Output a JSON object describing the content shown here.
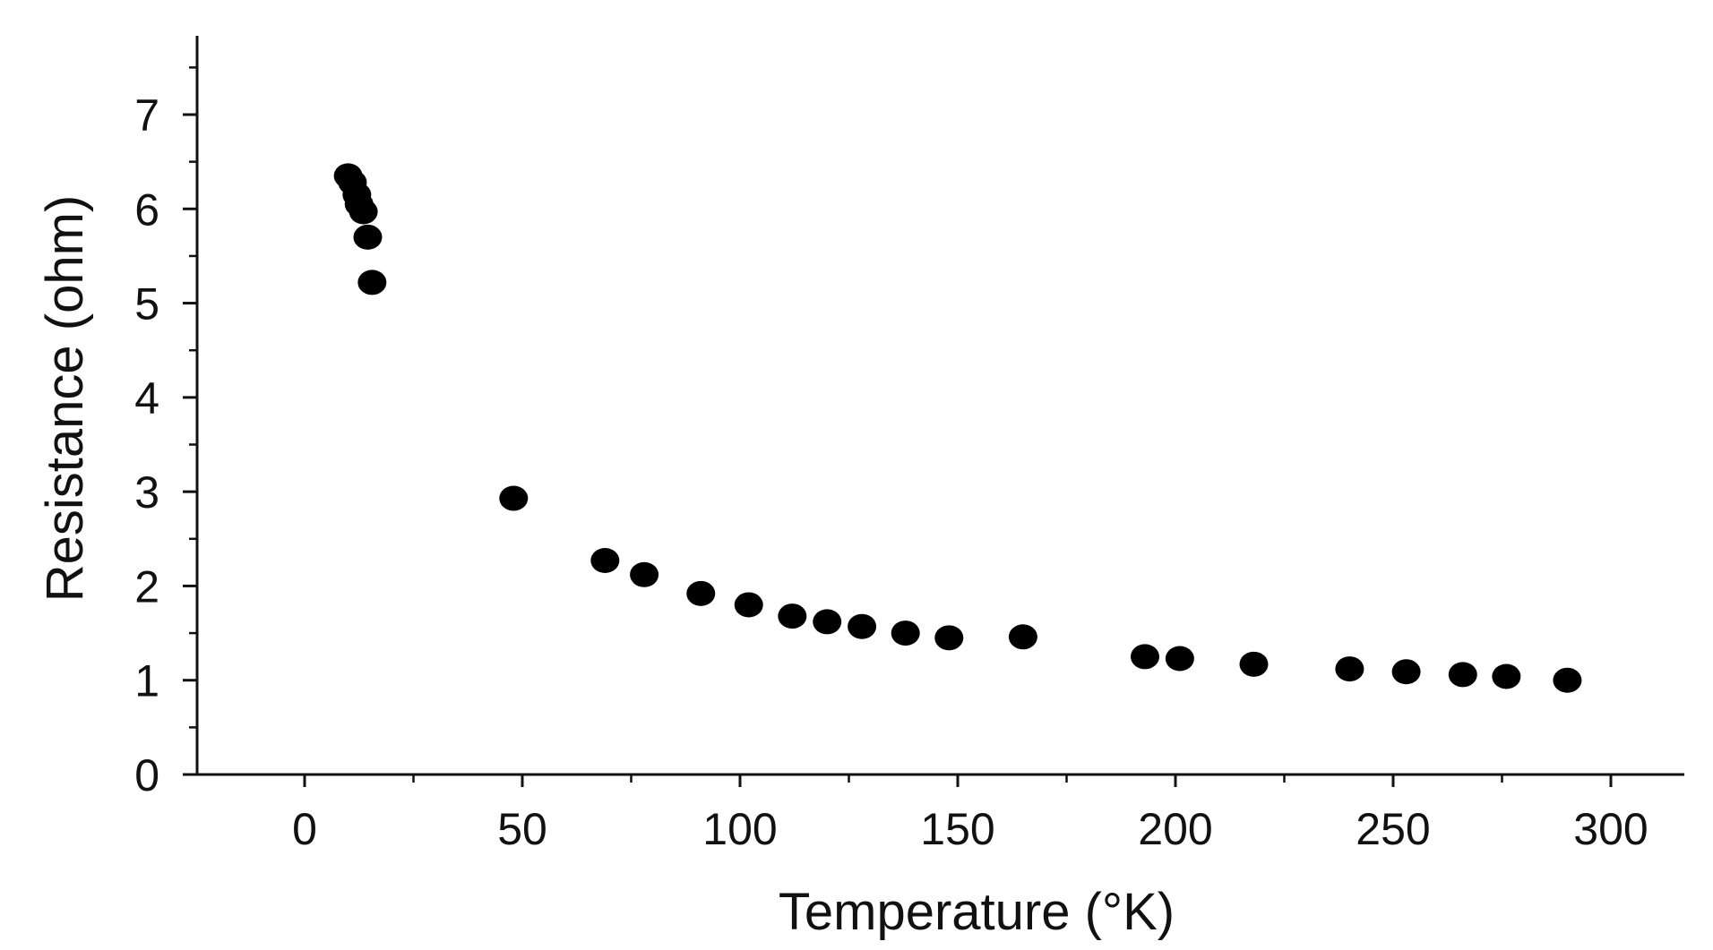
{
  "chart_data": {
    "type": "scatter",
    "title": "",
    "xlabel": "Temperature (°K)",
    "ylabel": "Resistance (ohm)",
    "xlim": [
      -25,
      315
    ],
    "ylim": [
      0,
      7.5
    ],
    "x_ticks": [
      0,
      50,
      100,
      150,
      200,
      250,
      300
    ],
    "x_tick_labels": [
      "0",
      "50",
      "100",
      "150",
      "200",
      "250",
      "300"
    ],
    "y_ticks": [
      0,
      1,
      2,
      3,
      4,
      5,
      6,
      7
    ],
    "y_tick_labels": [
      "0",
      "1",
      "2",
      "3",
      "4",
      "5",
      "6",
      "7"
    ],
    "grid": false,
    "legend": "none",
    "marker_color": "#000000",
    "series": [
      {
        "points": [
          {
            "x": 10,
            "y": 6.35
          },
          {
            "x": 11,
            "y": 6.28
          },
          {
            "x": 12,
            "y": 6.15
          },
          {
            "x": 12.5,
            "y": 6.05
          },
          {
            "x": 13.5,
            "y": 5.97
          },
          {
            "x": 14.5,
            "y": 5.7
          },
          {
            "x": 15.5,
            "y": 5.22
          },
          {
            "x": 48,
            "y": 2.93
          },
          {
            "x": 69,
            "y": 2.27
          },
          {
            "x": 78,
            "y": 2.12
          },
          {
            "x": 91,
            "y": 1.92
          },
          {
            "x": 102,
            "y": 1.8
          },
          {
            "x": 112,
            "y": 1.68
          },
          {
            "x": 120,
            "y": 1.62
          },
          {
            "x": 128,
            "y": 1.57
          },
          {
            "x": 138,
            "y": 1.5
          },
          {
            "x": 148,
            "y": 1.45
          },
          {
            "x": 165,
            "y": 1.46
          },
          {
            "x": 193,
            "y": 1.25
          },
          {
            "x": 201,
            "y": 1.23
          },
          {
            "x": 218,
            "y": 1.17
          },
          {
            "x": 240,
            "y": 1.12
          },
          {
            "x": 253,
            "y": 1.09
          },
          {
            "x": 266,
            "y": 1.06
          },
          {
            "x": 276,
            "y": 1.04
          },
          {
            "x": 290,
            "y": 1.0
          }
        ]
      }
    ]
  }
}
